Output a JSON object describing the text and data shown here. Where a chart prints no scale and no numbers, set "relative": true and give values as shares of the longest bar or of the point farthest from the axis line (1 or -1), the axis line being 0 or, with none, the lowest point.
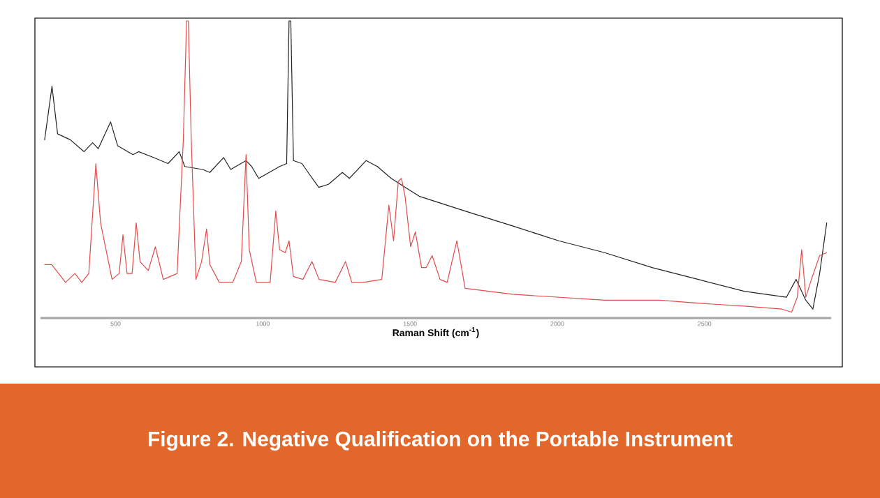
{
  "chart_data": {
    "type": "line",
    "title": "Figure 2. Negative Qualification on the Portable Instrument",
    "xlabel": "Raman Shift (cm$^{-1}$)",
    "relative": true,
    "xlim": [
      245,
      2930
    ],
    "xticks": [
      500,
      1000,
      1500,
      2000,
      2500
    ],
    "tick_labels": "x",
    "grid": false,
    "marker": "none",
    "line_style": "solid",
    "series": [
      {
        "color": "#222222",
        "x": [
          259,
          284,
          303,
          346,
          393,
          422,
          441,
          483,
          507,
          559,
          578,
          630,
          678,
          716,
          735,
          796,
          820,
          867,
          891,
          943,
          962,
          986,
          1057,
          1081,
          1089,
          1095,
          1104,
          1133,
          1161,
          1190,
          1223,
          1270,
          1294,
          1351,
          1389,
          1436,
          1483,
          1531,
          1687,
          1848,
          2005,
          2161,
          2322,
          2479,
          2635,
          2778,
          2811,
          2844,
          2868,
          2891,
          2915
        ],
        "values": [
          0.6,
          0.78,
          0.62,
          0.6,
          0.56,
          0.59,
          0.57,
          0.66,
          0.58,
          0.55,
          0.56,
          0.54,
          0.52,
          0.56,
          0.51,
          0.5,
          0.49,
          0.54,
          0.5,
          0.53,
          0.51,
          0.47,
          0.51,
          0.52,
          1.0,
          1.0,
          0.53,
          0.52,
          0.48,
          0.44,
          0.45,
          0.49,
          0.47,
          0.53,
          0.51,
          0.47,
          0.44,
          0.41,
          0.36,
          0.31,
          0.26,
          0.22,
          0.17,
          0.13,
          0.09,
          0.07,
          0.13,
          0.06,
          0.03,
          0.15,
          0.32
        ]
      },
      {
        "color": "#e34a4a",
        "x": [
          259,
          283,
          330,
          362,
          385,
          409,
          433,
          449,
          488,
          512,
          525,
          539,
          556,
          570,
          583,
          611,
          635,
          662,
          709,
          730,
          741,
          747,
          757,
          773,
          792,
          809,
          820,
          852,
          898,
          927,
          943,
          954,
          978,
          1025,
          1044,
          1057,
          1076,
          1089,
          1104,
          1136,
          1167,
          1191,
          1246,
          1281,
          1302,
          1341,
          1404,
          1428,
          1444,
          1460,
          1471,
          1483,
          1502,
          1518,
          1539,
          1555,
          1575,
          1602,
          1626,
          1659,
          1687,
          1848,
          2161,
          2346,
          2479,
          2635,
          2763,
          2796,
          2815,
          2830,
          2844,
          2863,
          2891,
          2915
        ],
        "values": [
          0.18,
          0.18,
          0.12,
          0.15,
          0.12,
          0.15,
          0.52,
          0.32,
          0.13,
          0.15,
          0.28,
          0.15,
          0.15,
          0.32,
          0.19,
          0.16,
          0.24,
          0.13,
          0.15,
          0.6,
          1.0,
          1.0,
          0.6,
          0.13,
          0.19,
          0.3,
          0.18,
          0.12,
          0.12,
          0.19,
          0.55,
          0.23,
          0.12,
          0.12,
          0.36,
          0.23,
          0.22,
          0.26,
          0.14,
          0.13,
          0.19,
          0.13,
          0.12,
          0.19,
          0.12,
          0.12,
          0.13,
          0.38,
          0.26,
          0.46,
          0.47,
          0.41,
          0.24,
          0.29,
          0.17,
          0.17,
          0.21,
          0.13,
          0.12,
          0.26,
          0.1,
          0.08,
          0.06,
          0.06,
          0.05,
          0.04,
          0.03,
          0.02,
          0.07,
          0.23,
          0.07,
          0.13,
          0.21,
          0.22
        ]
      }
    ]
  }
}
